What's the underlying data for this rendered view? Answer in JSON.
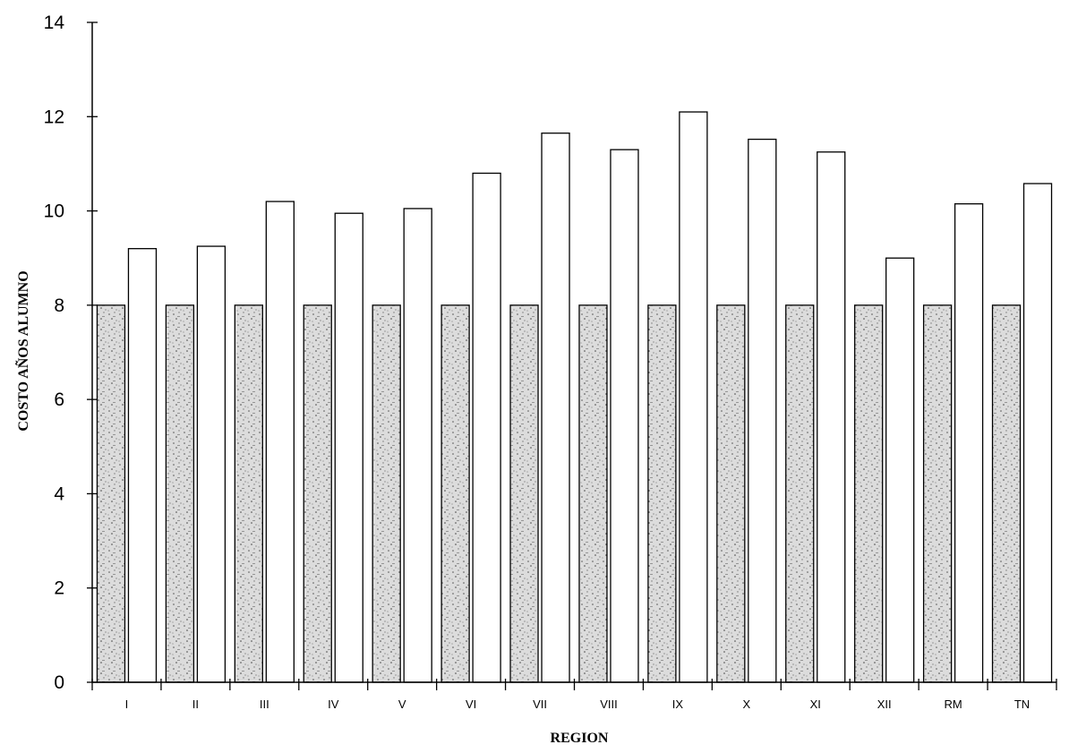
{
  "chart_data": {
    "type": "bar",
    "title": "",
    "xlabel": "REGION",
    "ylabel": "COSTO AÑOS ALUMNO",
    "ylim": [
      0,
      14
    ],
    "yticks": [
      0,
      2,
      4,
      6,
      8,
      10,
      12,
      14
    ],
    "grid": false,
    "legend": "none",
    "categories": [
      "I",
      "II",
      "III",
      "IV",
      "V",
      "VI",
      "VII",
      "VIII",
      "IX",
      "X",
      "XI",
      "XII",
      "RM",
      "TN"
    ],
    "series": [
      {
        "values": [
          8,
          8,
          8,
          8,
          8,
          8,
          8,
          8,
          8,
          8,
          8,
          8,
          8,
          8
        ],
        "color": "#d9d9d9",
        "pattern": "stipple"
      },
      {
        "values": [
          9.2,
          9.25,
          10.2,
          9.95,
          10.05,
          10.8,
          11.65,
          11.3,
          12.1,
          11.52,
          11.25,
          9.0,
          10.15,
          10.58
        ],
        "color": "#ffffff"
      }
    ]
  }
}
